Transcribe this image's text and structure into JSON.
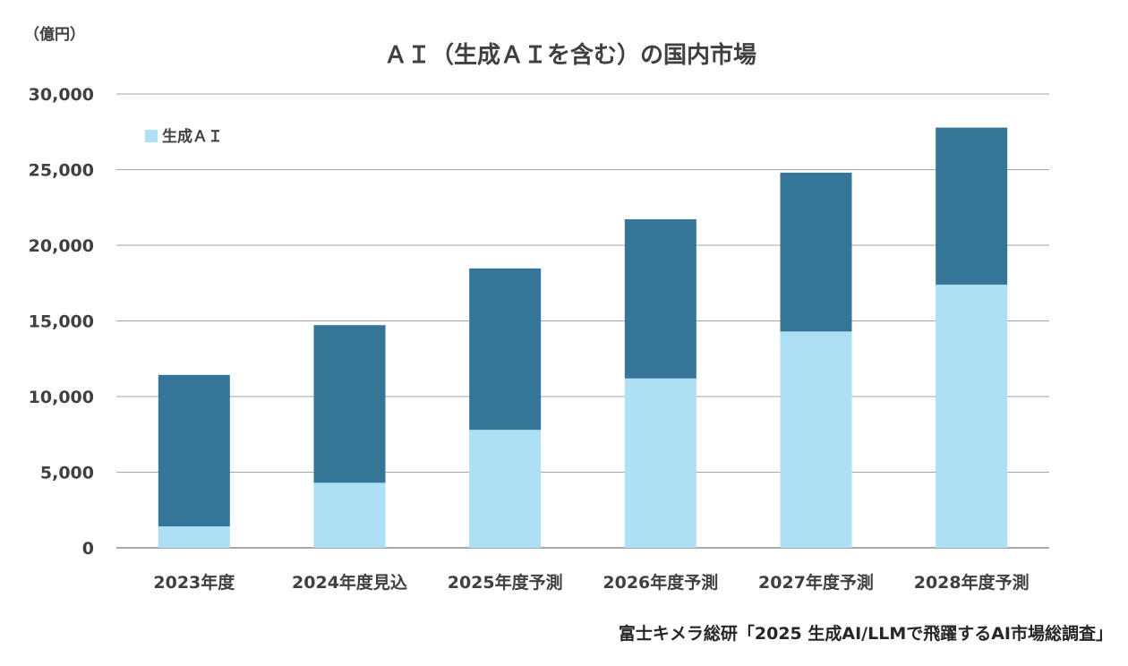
{
  "chart_data": {
    "type": "bar",
    "stacked": true,
    "title": "ＡＩ（生成ＡＩを含む）の国内市場",
    "unit_label": "（億円）",
    "source": "富士キメラ総研「2025 生成AI/LLMで飛躍するAI市場総調査」",
    "categories": [
      "2023年度",
      "2024年度見込",
      "2025年度予測",
      "2026年度予測",
      "2027年度予測",
      "2028年度予測"
    ],
    "ylim": [
      0,
      30000
    ],
    "yticks": [
      0,
      5000,
      10000,
      15000,
      20000,
      25000,
      30000
    ],
    "ytick_labels": [
      "0",
      "5,000",
      "10,000",
      "15,000",
      "20,000",
      "25,000",
      "30,000"
    ],
    "grid": true,
    "legend_position": "top-left",
    "series": [
      {
        "name": "生成ＡＩ",
        "values": [
          1420,
          4300,
          7800,
          11200,
          14300,
          17400
        ],
        "color": "#addff5"
      },
      {
        "values": [
          10010,
          10420,
          10670,
          10520,
          10500,
          10380
        ],
        "color": "#347598"
      }
    ]
  }
}
